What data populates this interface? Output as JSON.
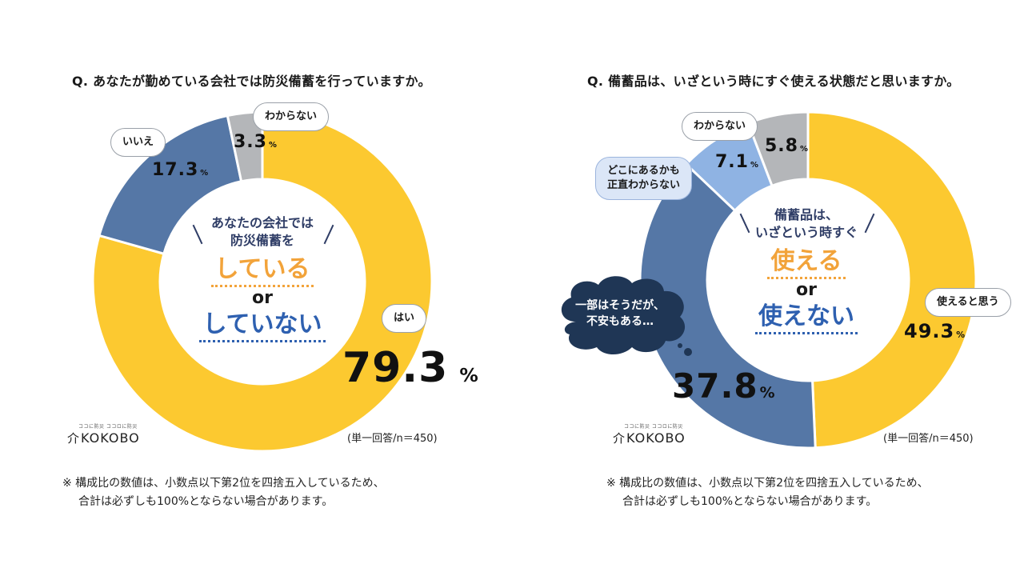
{
  "colors": {
    "yellow": "#fcc930",
    "blue": "#5577a6",
    "lightblue": "#8fb3e3",
    "gray": "#b4b6b9",
    "orange": "#f2a33a",
    "navy": "#1f3655",
    "centerBlue": "#2e60b0"
  },
  "left": {
    "question": "Q. あなたが勤めている会社では防災備蓄を行っていますか。",
    "center": {
      "line1": "あなたの会社では",
      "line2": "防災備蓄を",
      "yes": "している",
      "or": "or",
      "no": "していない"
    },
    "bubbles": {
      "yes": "はい",
      "no": "いいえ",
      "unknown": "わからない"
    },
    "labels": {
      "yes_value": "79.3",
      "no_value": "17.3",
      "unknown_value": "3.3",
      "unit": "%"
    },
    "sample": "(単一回答/n＝450)"
  },
  "right": {
    "question": "Q. 備蓄品は、いざという時にすぐ使える状態だと思いますか。",
    "center": {
      "line1": "備蓄品は、",
      "line2": "いざという時すぐ",
      "yes": "使える",
      "or": "or",
      "no": "使えない"
    },
    "bubbles": {
      "yes": "使えると思う",
      "partly_line1": "一部はそうだが、",
      "partly_line2": "不安もある…",
      "where_line1": "どこにあるかも",
      "where_line2": "正直わからない",
      "unknown": "わからない"
    },
    "labels": {
      "yes_value": "49.3",
      "partly_value": "37.8",
      "where_value": "7.1",
      "unknown_value": "5.8",
      "unit": "%"
    },
    "sample": "(単一回答/n＝450)"
  },
  "logo": {
    "tagline": "ココに防災 ココロに防災",
    "name": "KOKOBO",
    "mark": "介"
  },
  "note": {
    "line1": "※ 構成比の数値は、小数点以下第2位を四捨五入しているため、",
    "line2": "合計は必ずしも100%とならない場合があります。"
  },
  "chart_data": [
    {
      "type": "pie",
      "title": "Q. あなたが勤めている会社では防災備蓄を行っていますか。",
      "categories": [
        "はい",
        "いいえ",
        "わからない"
      ],
      "values": [
        79.3,
        17.3,
        3.3
      ],
      "unit": "%",
      "colors": [
        "#fcc930",
        "#5577a6",
        "#b4b6b9"
      ],
      "n": 450
    },
    {
      "type": "pie",
      "title": "Q. 備蓄品は、いざという時にすぐ使える状態だと思いますか。",
      "categories": [
        "使えると思う",
        "一部はそうだが、不安もある…",
        "どこにあるかも正直わからない",
        "わからない"
      ],
      "values": [
        49.3,
        37.8,
        7.1,
        5.8
      ],
      "unit": "%",
      "colors": [
        "#fcc930",
        "#5577a6",
        "#8fb3e3",
        "#b4b6b9"
      ],
      "n": 450
    }
  ]
}
